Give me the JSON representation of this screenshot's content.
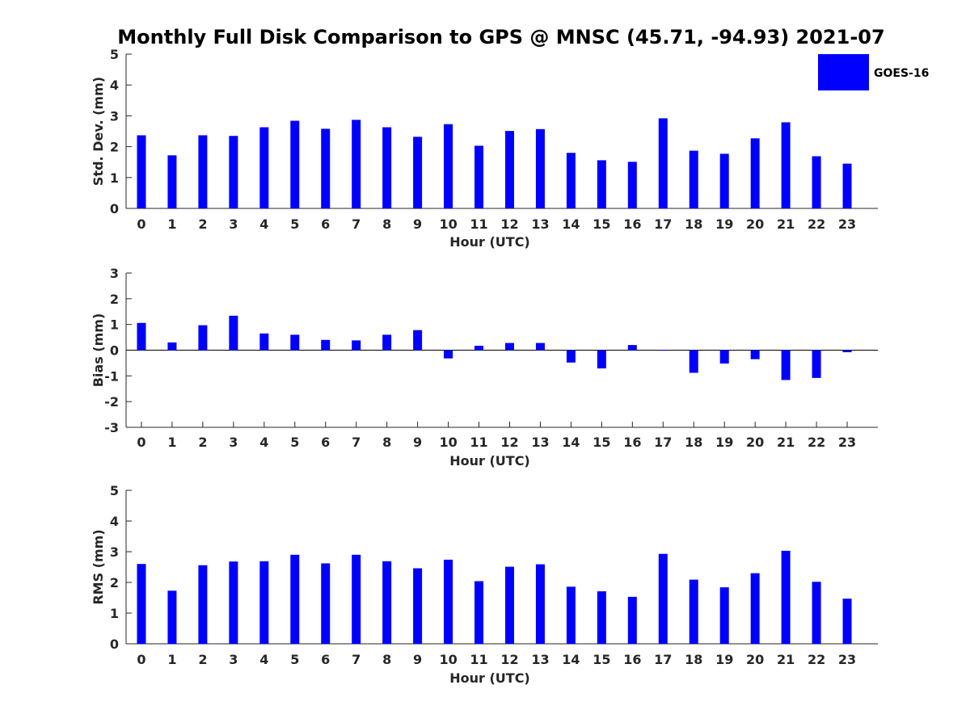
{
  "title": "Monthly Full Disk Comparison to GPS @ MNSC (45.71, -94.93) 2021-07",
  "legend": {
    "label": "GOES-16",
    "color": "#0000ff"
  },
  "chart_data": [
    {
      "type": "bar",
      "name": "std-dev",
      "ylabel": "Std. Dev. (mm)",
      "xlabel": "Hour (UTC)",
      "ylim": [
        0,
        5
      ],
      "yticks": [
        0,
        1,
        2,
        3,
        4,
        5
      ],
      "categories": [
        "0",
        "1",
        "2",
        "3",
        "4",
        "5",
        "6",
        "7",
        "8",
        "9",
        "10",
        "11",
        "12",
        "13",
        "14",
        "15",
        "16",
        "17",
        "18",
        "19",
        "20",
        "21",
        "22",
        "23"
      ],
      "series": [
        {
          "name": "GOES-16",
          "values": [
            2.37,
            1.72,
            2.37,
            2.35,
            2.63,
            2.84,
            2.58,
            2.87,
            2.63,
            2.32,
            2.73,
            2.03,
            2.51,
            2.57,
            1.8,
            1.56,
            1.51,
            2.92,
            1.87,
            1.77,
            2.27,
            2.79,
            1.69,
            1.45
          ]
        }
      ]
    },
    {
      "type": "bar",
      "name": "bias",
      "ylabel": "Bias (mm)",
      "xlabel": "Hour (UTC)",
      "ylim": [
        -3,
        3
      ],
      "yticks": [
        -3,
        -2,
        -1,
        0,
        1,
        2,
        3
      ],
      "categories": [
        "0",
        "1",
        "2",
        "3",
        "4",
        "5",
        "6",
        "7",
        "8",
        "9",
        "10",
        "11",
        "12",
        "13",
        "14",
        "15",
        "16",
        "17",
        "18",
        "19",
        "20",
        "21",
        "22",
        "23"
      ],
      "series": [
        {
          "name": "GOES-16",
          "values": [
            1.06,
            0.3,
            0.97,
            1.34,
            0.65,
            0.6,
            0.4,
            0.38,
            0.6,
            0.78,
            -0.32,
            0.17,
            0.28,
            0.28,
            -0.48,
            -0.71,
            0.2,
            -0.02,
            -0.88,
            -0.52,
            -0.35,
            -1.16,
            -1.08,
            -0.08
          ]
        }
      ]
    },
    {
      "type": "bar",
      "name": "rms",
      "ylabel": "RMS (mm)",
      "xlabel": "Hour (UTC)",
      "ylim": [
        0,
        5
      ],
      "yticks": [
        0,
        1,
        2,
        3,
        4,
        5
      ],
      "categories": [
        "0",
        "1",
        "2",
        "3",
        "4",
        "5",
        "6",
        "7",
        "8",
        "9",
        "10",
        "11",
        "12",
        "13",
        "14",
        "15",
        "16",
        "17",
        "18",
        "19",
        "20",
        "21",
        "22",
        "23"
      ],
      "series": [
        {
          "name": "GOES-16",
          "values": [
            2.6,
            1.73,
            2.56,
            2.68,
            2.69,
            2.9,
            2.62,
            2.9,
            2.69,
            2.46,
            2.74,
            2.04,
            2.51,
            2.59,
            1.86,
            1.71,
            1.53,
            2.93,
            2.09,
            1.84,
            2.3,
            3.03,
            2.02,
            1.47
          ]
        }
      ]
    }
  ]
}
